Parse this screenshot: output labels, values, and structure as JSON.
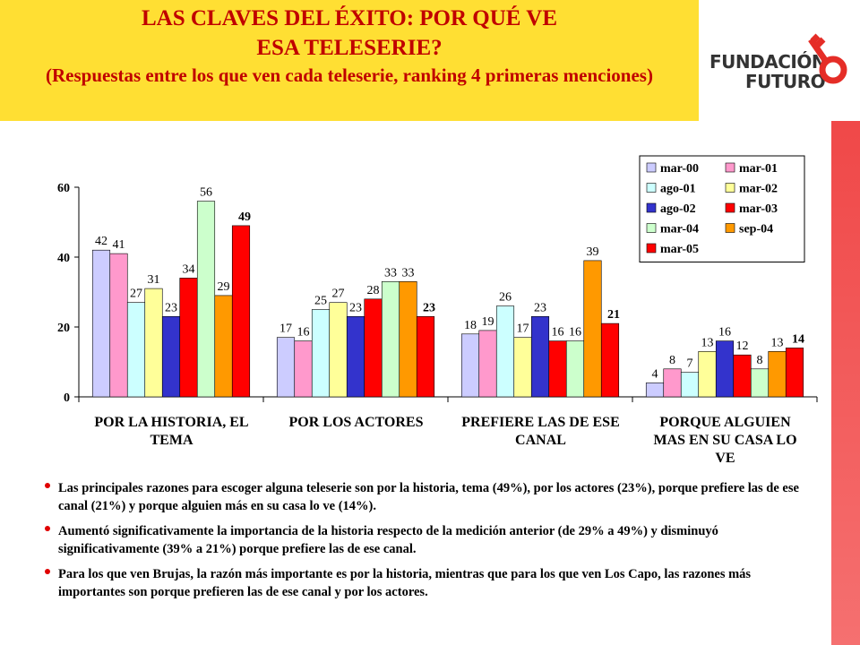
{
  "header": {
    "title": "LAS CLAVES DEL ÉXITO: POR QUÉ VE ESA TELESERIE?",
    "subtitle": "(Respuestas entre los que ven cada teleserie, ranking 4 primeras menciones)"
  },
  "logo": {
    "line1": "FUNDACIÓN",
    "line2": "FUTURO"
  },
  "chart_data": {
    "type": "bar",
    "categories": [
      "POR LA HISTORIA, EL TEMA",
      "POR LOS ACTORES",
      "PREFIERE LAS DE ESE CANAL",
      "PORQUE ALGUIEN MAS EN SU CASA LO VE"
    ],
    "series": [
      {
        "name": "mar-00",
        "color": "#ccccff",
        "values": [
          42,
          17,
          18,
          4
        ]
      },
      {
        "name": "mar-01",
        "color": "#ff99cc",
        "values": [
          41,
          16,
          19,
          8
        ]
      },
      {
        "name": "ago-01",
        "color": "#ccffff",
        "values": [
          27,
          25,
          26,
          7
        ]
      },
      {
        "name": "mar-02",
        "color": "#ffff99",
        "values": [
          31,
          27,
          17,
          13
        ]
      },
      {
        "name": "ago-02",
        "color": "#3333cc",
        "values": [
          23,
          23,
          23,
          16
        ]
      },
      {
        "name": "mar-03",
        "color": "#ff0000",
        "values": [
          34,
          28,
          16,
          12
        ]
      },
      {
        "name": "mar-04",
        "color": "#ccffcc",
        "values": [
          56,
          33,
          16,
          8
        ]
      },
      {
        "name": "sep-04",
        "color": "#ff9900",
        "values": [
          29,
          33,
          39,
          13
        ]
      },
      {
        "name": "mar-05",
        "color": "#ff0000",
        "values": [
          49,
          23,
          21,
          14
        ]
      }
    ],
    "ylim": [
      0,
      60
    ],
    "yticks": [
      0,
      20,
      40,
      60
    ],
    "grid": false,
    "legend": "top-right"
  },
  "bullets": [
    "Las principales razones para escoger alguna teleserie son por la historia, tema (49%), por los actores (23%), porque prefiere las de ese canal (21%) y porque alguien más en su casa lo ve (14%).",
    "Aumentó significativamente la importancia de la historia respecto de la medición anterior (de 29% a 49%) y disminuyó significativamente (39% a 21%) porque prefiere las de ese canal.",
    "Para los que ven Brujas, la razón más importante es por la historia, mientras que para los que ven Los Capo, las razones más importantes son porque prefieren las de ese canal y por los actores."
  ]
}
